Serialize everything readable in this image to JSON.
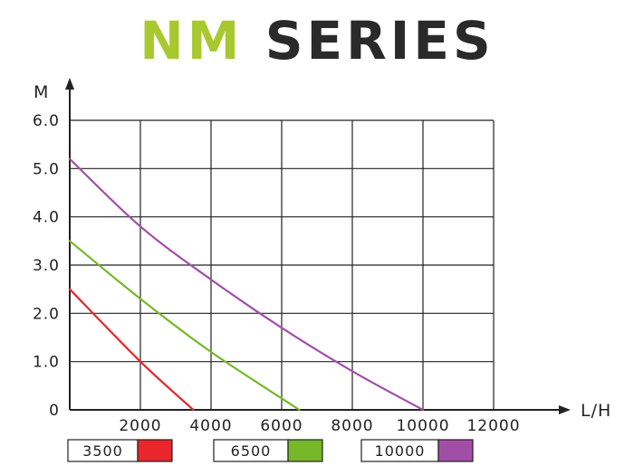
{
  "title": {
    "part1": "NM",
    "part2": "SERIES"
  },
  "chart_data": {
    "type": "line",
    "title": "NM SERIES",
    "xlabel": "L/H",
    "ylabel": "M",
    "xlim": [
      0,
      12000
    ],
    "ylim": [
      0,
      6.0
    ],
    "x_ticks": [
      "2000",
      "4000",
      "6000",
      "8000",
      "10000",
      "12000"
    ],
    "y_ticks": [
      "6.0",
      "5.0",
      "4.0",
      "3.0",
      "2.0",
      "1.0",
      "0"
    ],
    "grid": true,
    "legend_position": "bottom",
    "series": [
      {
        "name": "3500",
        "color": "#e8262b",
        "points": [
          [
            0,
            2.5
          ],
          [
            2000,
            1.0
          ],
          [
            3500,
            0
          ]
        ]
      },
      {
        "name": "6500",
        "color": "#76b82a",
        "points": [
          [
            0,
            3.5
          ],
          [
            2000,
            2.3
          ],
          [
            4000,
            1.2
          ],
          [
            6500,
            0
          ]
        ]
      },
      {
        "name": "10000",
        "color": "#a24ea7",
        "points": [
          [
            0,
            5.2
          ],
          [
            2000,
            3.8
          ],
          [
            4000,
            2.7
          ],
          [
            6000,
            1.7
          ],
          [
            8000,
            0.8
          ],
          [
            10000,
            0
          ]
        ]
      }
    ]
  }
}
